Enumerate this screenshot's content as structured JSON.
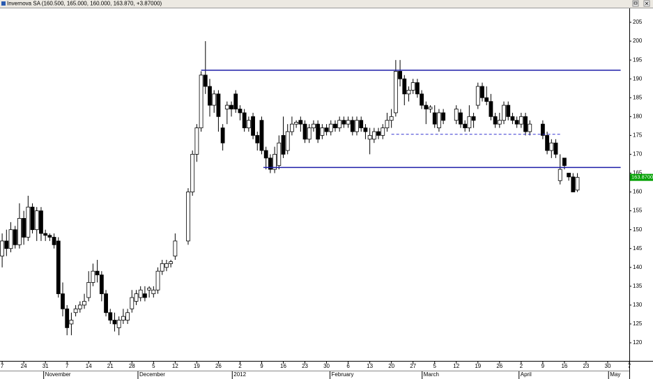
{
  "chart_data": {
    "type": "candlestick",
    "title": "Invernova SA (160.500, 165.000, 160.000, 163.870, +3.87000)",
    "x": [
      0,
      1,
      2,
      3,
      4,
      5,
      6,
      7,
      8,
      9,
      10,
      11,
      12,
      13,
      14,
      15,
      16,
      17,
      18,
      19,
      20,
      21,
      22,
      23,
      24,
      25,
      26,
      27,
      28,
      29,
      30,
      31,
      32,
      33,
      34,
      35,
      36,
      37,
      38,
      39,
      40,
      43,
      44,
      45,
      46,
      47,
      48,
      49,
      50,
      51,
      52,
      53,
      54,
      55,
      56,
      57,
      58,
      59,
      60,
      61,
      62,
      63,
      64,
      65,
      66,
      67,
      68,
      69,
      70,
      71,
      72,
      73,
      74,
      75,
      76,
      77,
      78,
      79,
      80,
      81,
      82,
      83,
      84,
      85,
      86,
      87,
      88,
      89,
      90,
      91,
      92,
      93,
      94,
      95,
      96,
      97,
      98,
      99,
      100,
      101,
      102,
      105,
      106,
      107,
      108,
      109,
      110,
      111,
      112,
      113,
      114,
      115,
      116,
      117,
      118,
      119,
      120,
      121,
      122,
      125,
      126,
      127,
      128,
      129,
      130,
      131,
      132,
      133
    ],
    "open": [
      143,
      147,
      145,
      150,
      146,
      153,
      148,
      156,
      150,
      155,
      149,
      148.5,
      148,
      147,
      133,
      129,
      125,
      128,
      129,
      130,
      132,
      136,
      139,
      138,
      133,
      128,
      126,
      124,
      126,
      126,
      129,
      131,
      132,
      133,
      134,
      133,
      134,
      139,
      140,
      141,
      143,
      147,
      160,
      170,
      177,
      191,
      188,
      183,
      186,
      177,
      182,
      183,
      186,
      182,
      181,
      177,
      180,
      175,
      179,
      171,
      169,
      166,
      167,
      175,
      171,
      176,
      178,
      179,
      178,
      174,
      177,
      178,
      175,
      177,
      176,
      178,
      177,
      179,
      178,
      179,
      176,
      179,
      177,
      174,
      174,
      176,
      175,
      177,
      179,
      181,
      192,
      190,
      186,
      187,
      189,
      186,
      183,
      182,
      181,
      177,
      181,
      179,
      181,
      178,
      177,
      180,
      183,
      188,
      185,
      184,
      180,
      178,
      179,
      183,
      180,
      179,
      178,
      180,
      176,
      178,
      175,
      171,
      173,
      163,
      169,
      165,
      164,
      160.5
    ],
    "high": [
      149,
      150,
      152,
      151,
      157,
      155,
      159,
      157,
      156,
      156,
      150,
      149,
      149,
      148,
      136,
      130,
      128,
      130,
      131,
      133,
      139,
      141,
      142,
      139,
      134,
      129,
      128,
      127,
      129,
      129,
      134,
      134,
      135,
      135,
      135,
      135,
      140,
      142,
      142,
      142,
      149,
      161,
      171,
      178,
      192,
      200,
      190,
      187,
      187,
      178,
      184,
      184,
      187,
      183,
      182,
      180,
      181,
      176,
      180,
      172,
      170,
      172,
      175,
      180,
      178,
      180,
      179,
      180,
      179,
      178,
      179,
      179,
      178,
      178,
      179,
      179,
      180,
      180,
      180,
      180,
      180,
      180,
      178,
      177,
      177,
      177,
      178,
      181,
      182,
      195,
      195,
      191,
      188,
      190,
      190,
      187,
      184,
      183,
      183,
      182,
      182,
      183,
      182,
      179,
      183,
      181,
      189,
      189,
      188,
      186,
      181,
      181,
      184,
      184,
      181,
      180,
      181,
      181,
      179,
      179,
      176,
      174,
      174,
      170,
      169,
      165,
      165,
      165
    ],
    "low": [
      140,
      143,
      144,
      145,
      145,
      146,
      147,
      149,
      147,
      147,
      147,
      147,
      145,
      132,
      127,
      122,
      122,
      127,
      128,
      129,
      131,
      135,
      136,
      131,
      127,
      125,
      123,
      122,
      125,
      125,
      128,
      130,
      131,
      131,
      132,
      132,
      133,
      138,
      139,
      140,
      142,
      146,
      159,
      168,
      176,
      186,
      180,
      181,
      176,
      171,
      178,
      180,
      181,
      179,
      176,
      176,
      174,
      171,
      170,
      166,
      165,
      165,
      166,
      169,
      170,
      175,
      177,
      176,
      173,
      173,
      176,
      173,
      174,
      175,
      175,
      176,
      176,
      177,
      177,
      175,
      175,
      176,
      174,
      170,
      173,
      174,
      174,
      176,
      177,
      180,
      188,
      183,
      184,
      186,
      185,
      182,
      178,
      181,
      177,
      176,
      178,
      178,
      177,
      176,
      176,
      177,
      182,
      184,
      183,
      179,
      177,
      177,
      178,
      179,
      178,
      177,
      177,
      175,
      175,
      174,
      170,
      169,
      169,
      162,
      166,
      163,
      160,
      160
    ],
    "close": [
      147,
      145,
      150,
      146,
      153,
      148,
      156,
      150,
      155,
      149,
      148.5,
      148,
      146,
      133,
      129,
      124,
      126,
      129,
      130,
      131,
      136,
      139,
      138,
      133,
      128,
      126,
      125,
      126,
      127,
      128,
      132,
      133,
      134,
      132,
      134.5,
      134,
      139,
      141,
      141,
      141.5,
      147,
      160,
      170,
      177,
      191,
      188,
      183,
      186,
      180,
      173,
      183,
      182,
      182,
      181,
      177,
      179,
      175,
      173,
      171,
      169,
      166,
      170,
      173,
      170,
      176,
      178,
      178.5,
      178,
      174,
      177,
      178,
      174,
      177,
      176,
      178,
      177,
      179,
      178,
      179,
      176,
      179,
      177,
      176,
      175,
      176,
      175,
      177,
      179,
      180,
      192,
      190,
      186,
      187,
      189,
      186,
      183,
      182,
      182.5,
      178,
      181,
      179,
      182,
      178,
      177,
      180,
      179,
      188,
      185,
      184,
      180,
      178,
      179,
      183,
      180,
      179,
      178,
      180,
      176,
      178,
      175,
      171,
      173,
      170,
      166,
      167,
      164,
      160,
      163.87
    ],
    "last_label": "163.8700",
    "hlines": [
      {
        "y": 192.3,
        "x": [
          46,
          143
        ],
        "color": "#1c1ca8",
        "style": "solid"
      },
      {
        "y": 166.5,
        "x": [
          60.4,
          143
        ],
        "color": "#1c1ca8",
        "style": "solid"
      },
      {
        "y": 175.3,
        "x": [
          90,
          129
        ],
        "color": "#3434d0",
        "style": "dashed"
      }
    ],
    "xlim": [
      -0.5,
      145
    ],
    "ylim": [
      115.2,
      208.7
    ],
    "yticks": [
      120,
      125,
      130,
      135,
      140,
      145,
      150,
      155,
      160,
      165,
      170,
      175,
      180,
      185,
      190,
      195,
      200,
      205
    ],
    "xticks": [
      {
        "value": 0,
        "label": "7"
      },
      {
        "value": 5,
        "label": "24"
      },
      {
        "value": 10,
        "label": "31"
      },
      {
        "value": 15,
        "label": "7"
      },
      {
        "value": 20,
        "label": "14"
      },
      {
        "value": 25,
        "label": "21"
      },
      {
        "value": 30,
        "label": "28"
      },
      {
        "value": 35,
        "label": "5"
      },
      {
        "value": 40,
        "label": "12"
      },
      {
        "value": 45,
        "label": "19"
      },
      {
        "value": 50,
        "label": "26"
      },
      {
        "value": 55,
        "label": "2"
      },
      {
        "value": 60,
        "label": "9"
      },
      {
        "value": 65,
        "label": "16"
      },
      {
        "value": 70,
        "label": "23"
      },
      {
        "value": 75,
        "label": "30"
      },
      {
        "value": 80,
        "label": "6"
      },
      {
        "value": 85,
        "label": "13"
      },
      {
        "value": 90,
        "label": "20"
      },
      {
        "value": 95,
        "label": "27"
      },
      {
        "value": 100,
        "label": "5"
      },
      {
        "value": 105,
        "label": "12"
      },
      {
        "value": 110,
        "label": "19"
      },
      {
        "value": 115,
        "label": "26"
      },
      {
        "value": 120,
        "label": "2"
      },
      {
        "value": 125,
        "label": "9"
      },
      {
        "value": 130,
        "label": "16"
      },
      {
        "value": 135,
        "label": "23"
      },
      {
        "value": 140,
        "label": "30"
      },
      {
        "value": 145,
        "label": "7"
      }
    ],
    "month_ticks": [
      {
        "value": 9.6,
        "label": "November"
      },
      {
        "value": 31.4,
        "label": "December"
      },
      {
        "value": 53.2,
        "label": "2012"
      },
      {
        "value": 75.8,
        "label": "February"
      },
      {
        "value": 97.1,
        "label": "March"
      },
      {
        "value": 119.5,
        "label": "April"
      },
      {
        "value": 140.2,
        "label": "May"
      }
    ]
  }
}
